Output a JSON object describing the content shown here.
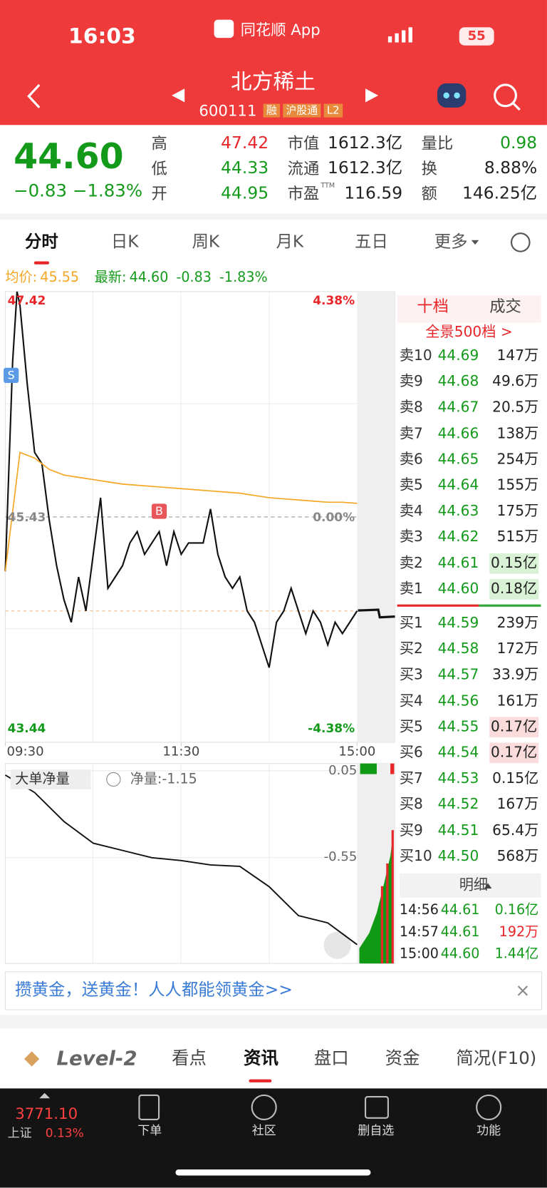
{
  "status": {
    "time": "16:03",
    "app": "同花顺 App",
    "battery": "55"
  },
  "header": {
    "name": "北方稀土",
    "code": "600111",
    "badges": [
      "融",
      "沪股通",
      "L2"
    ]
  },
  "quote": {
    "price": "44.60",
    "change": "−0.83",
    "pct": "−1.83%",
    "stats": [
      {
        "label": "高",
        "value": "47.42"
      },
      {
        "label": "低",
        "value": "44.33"
      },
      {
        "label": "开",
        "value": "44.95"
      },
      {
        "label": "市值",
        "value": "1612.3亿"
      },
      {
        "label": "流通",
        "value": "1612.3亿"
      },
      {
        "label": "市盈",
        "sup": "TTM",
        "value": "116.59"
      },
      {
        "label": "量比",
        "value": "0.98"
      },
      {
        "label": "换",
        "value": "8.88%"
      },
      {
        "label": "额",
        "value": "146.25亿"
      }
    ]
  },
  "tabs": [
    "分时",
    "日K",
    "周K",
    "月K",
    "五日",
    "更多"
  ],
  "legend": {
    "avg_label": "均价:",
    "avg": "45.55",
    "last_label": "最新:",
    "last": "44.60",
    "change": "-0.83",
    "pct": "-1.83%"
  },
  "chart": {
    "type": "line",
    "xlim": [
      0,
      240
    ],
    "xticks": [
      {
        "value": 0,
        "label": "09:30"
      },
      {
        "value": 120,
        "label": "11:30"
      },
      {
        "value": 240,
        "label": "15:00"
      }
    ],
    "ylim": [
      43.44,
      47.42
    ],
    "yticks": [
      47.42,
      45.43,
      43.44
    ],
    "y2ticks": [
      {
        "value": 47.42,
        "label": "4.38%"
      },
      {
        "value": 45.43,
        "label": "0.00%"
      },
      {
        "value": 43.44,
        "label": "-4.38%"
      }
    ],
    "last": 44.6,
    "series": [
      {
        "color": "#111",
        "x": [
          0,
          5,
          8,
          10,
          15,
          20,
          25,
          30,
          35,
          40,
          45,
          50,
          55,
          60,
          65,
          70,
          75,
          80,
          85,
          90,
          95,
          100,
          105,
          110,
          115,
          120,
          125,
          130,
          135,
          140,
          145,
          150,
          155,
          160,
          165,
          170,
          175,
          180,
          185,
          190,
          195,
          200,
          205,
          210,
          215,
          220,
          225,
          230,
          235,
          240
        ],
        "values": [
          44.95,
          46.8,
          47.42,
          47.3,
          46.6,
          46.0,
          45.9,
          45.4,
          45.0,
          44.7,
          44.5,
          44.9,
          44.6,
          45.1,
          45.6,
          44.8,
          44.9,
          45.0,
          45.2,
          45.3,
          45.1,
          45.2,
          45.3,
          45.0,
          45.3,
          45.1,
          45.2,
          45.2,
          45.2,
          45.5,
          45.1,
          44.9,
          44.8,
          44.9,
          44.6,
          44.5,
          44.3,
          44.1,
          44.5,
          44.6,
          44.8,
          44.6,
          44.4,
          44.6,
          44.5,
          44.3,
          44.5,
          44.4,
          44.5,
          44.6
        ]
      },
      {
        "color": "#f5a623",
        "x": [
          0,
          10,
          20,
          30,
          40,
          50,
          60,
          70,
          80,
          90,
          100,
          110,
          120,
          130,
          140,
          150,
          160,
          170,
          180,
          190,
          200,
          210,
          220,
          230,
          240
        ],
        "values": [
          44.95,
          46.0,
          45.95,
          45.85,
          45.8,
          45.78,
          45.76,
          45.74,
          45.72,
          45.71,
          45.7,
          45.69,
          45.68,
          45.67,
          45.66,
          45.65,
          45.64,
          45.62,
          45.6,
          45.59,
          45.58,
          45.57,
          45.56,
          45.56,
          45.55
        ]
      }
    ],
    "annotations": [
      {
        "text": "S",
        "x": 4,
        "y": 46.6,
        "color": "#5b9be6"
      },
      {
        "text": "B",
        "x": 105,
        "y": 45.4,
        "color": "#e8565a"
      }
    ]
  },
  "net": {
    "type": "line",
    "legend": "大单净量",
    "value_label": "净量:-1.15",
    "xlim": [
      0,
      240
    ],
    "ylim": [
      -1.28,
      0.1
    ],
    "yticks": [
      0.05,
      -0.55
    ],
    "x": [
      0,
      20,
      40,
      60,
      80,
      100,
      120,
      140,
      160,
      180,
      200,
      220,
      240
    ],
    "values": [
      0.02,
      -0.1,
      -0.3,
      -0.45,
      -0.5,
      -0.55,
      -0.57,
      -0.6,
      -0.61,
      -0.75,
      -0.95,
      -1.0,
      -1.15
    ]
  },
  "book": {
    "tabs": [
      "十档",
      "成交"
    ],
    "link": "全景500档 >",
    "asks": [
      {
        "label": "卖10",
        "price": "44.69",
        "vol": "147万"
      },
      {
        "label": "卖9",
        "price": "44.68",
        "vol": "49.6万"
      },
      {
        "label": "卖8",
        "price": "44.67",
        "vol": "20.5万"
      },
      {
        "label": "卖7",
        "price": "44.66",
        "vol": "138万"
      },
      {
        "label": "卖6",
        "price": "44.65",
        "vol": "254万"
      },
      {
        "label": "卖5",
        "price": "44.64",
        "vol": "155万"
      },
      {
        "label": "卖4",
        "price": "44.63",
        "vol": "175万"
      },
      {
        "label": "卖3",
        "price": "44.62",
        "vol": "515万"
      },
      {
        "label": "卖2",
        "price": "44.61",
        "vol": "0.15亿",
        "highlight": true
      },
      {
        "label": "卖1",
        "price": "44.60",
        "vol": "0.18亿",
        "highlight": true
      }
    ],
    "bids": [
      {
        "label": "买1",
        "price": "44.59",
        "vol": "239万"
      },
      {
        "label": "买2",
        "price": "44.58",
        "vol": "172万"
      },
      {
        "label": "买3",
        "price": "44.57",
        "vol": "33.9万"
      },
      {
        "label": "买4",
        "price": "44.56",
        "vol": "161万"
      },
      {
        "label": "买5",
        "price": "44.55",
        "vol": "0.17亿",
        "highlight": true
      },
      {
        "label": "买6",
        "price": "44.54",
        "vol": "0.17亿",
        "highlight": true
      },
      {
        "label": "买7",
        "price": "44.53",
        "vol": "0.15亿"
      },
      {
        "label": "买8",
        "price": "44.52",
        "vol": "167万"
      },
      {
        "label": "买9",
        "price": "44.51",
        "vol": "65.4万"
      },
      {
        "label": "买10",
        "price": "44.50",
        "vol": "568万"
      }
    ]
  },
  "detail": {
    "title": "明细",
    "rows": [
      {
        "time": "14:56",
        "price": "44.61",
        "vol": "0.16亿"
      },
      {
        "time": "14:57",
        "price": "44.61",
        "vol": "192万"
      },
      {
        "time": "15:00",
        "price": "44.60",
        "vol": "1.44亿"
      }
    ]
  },
  "banner": "攒黄金，送黄金！人人都能领黄金>>",
  "bottom_tabs": [
    "Level-2",
    "看点",
    "资讯",
    "盘口",
    "资金",
    "简况(F10)"
  ],
  "nav": {
    "index": "3771.10",
    "index_name": "上证",
    "index_pct": "0.13%",
    "items": [
      "下单",
      "社区",
      "删自选",
      "功能"
    ]
  }
}
